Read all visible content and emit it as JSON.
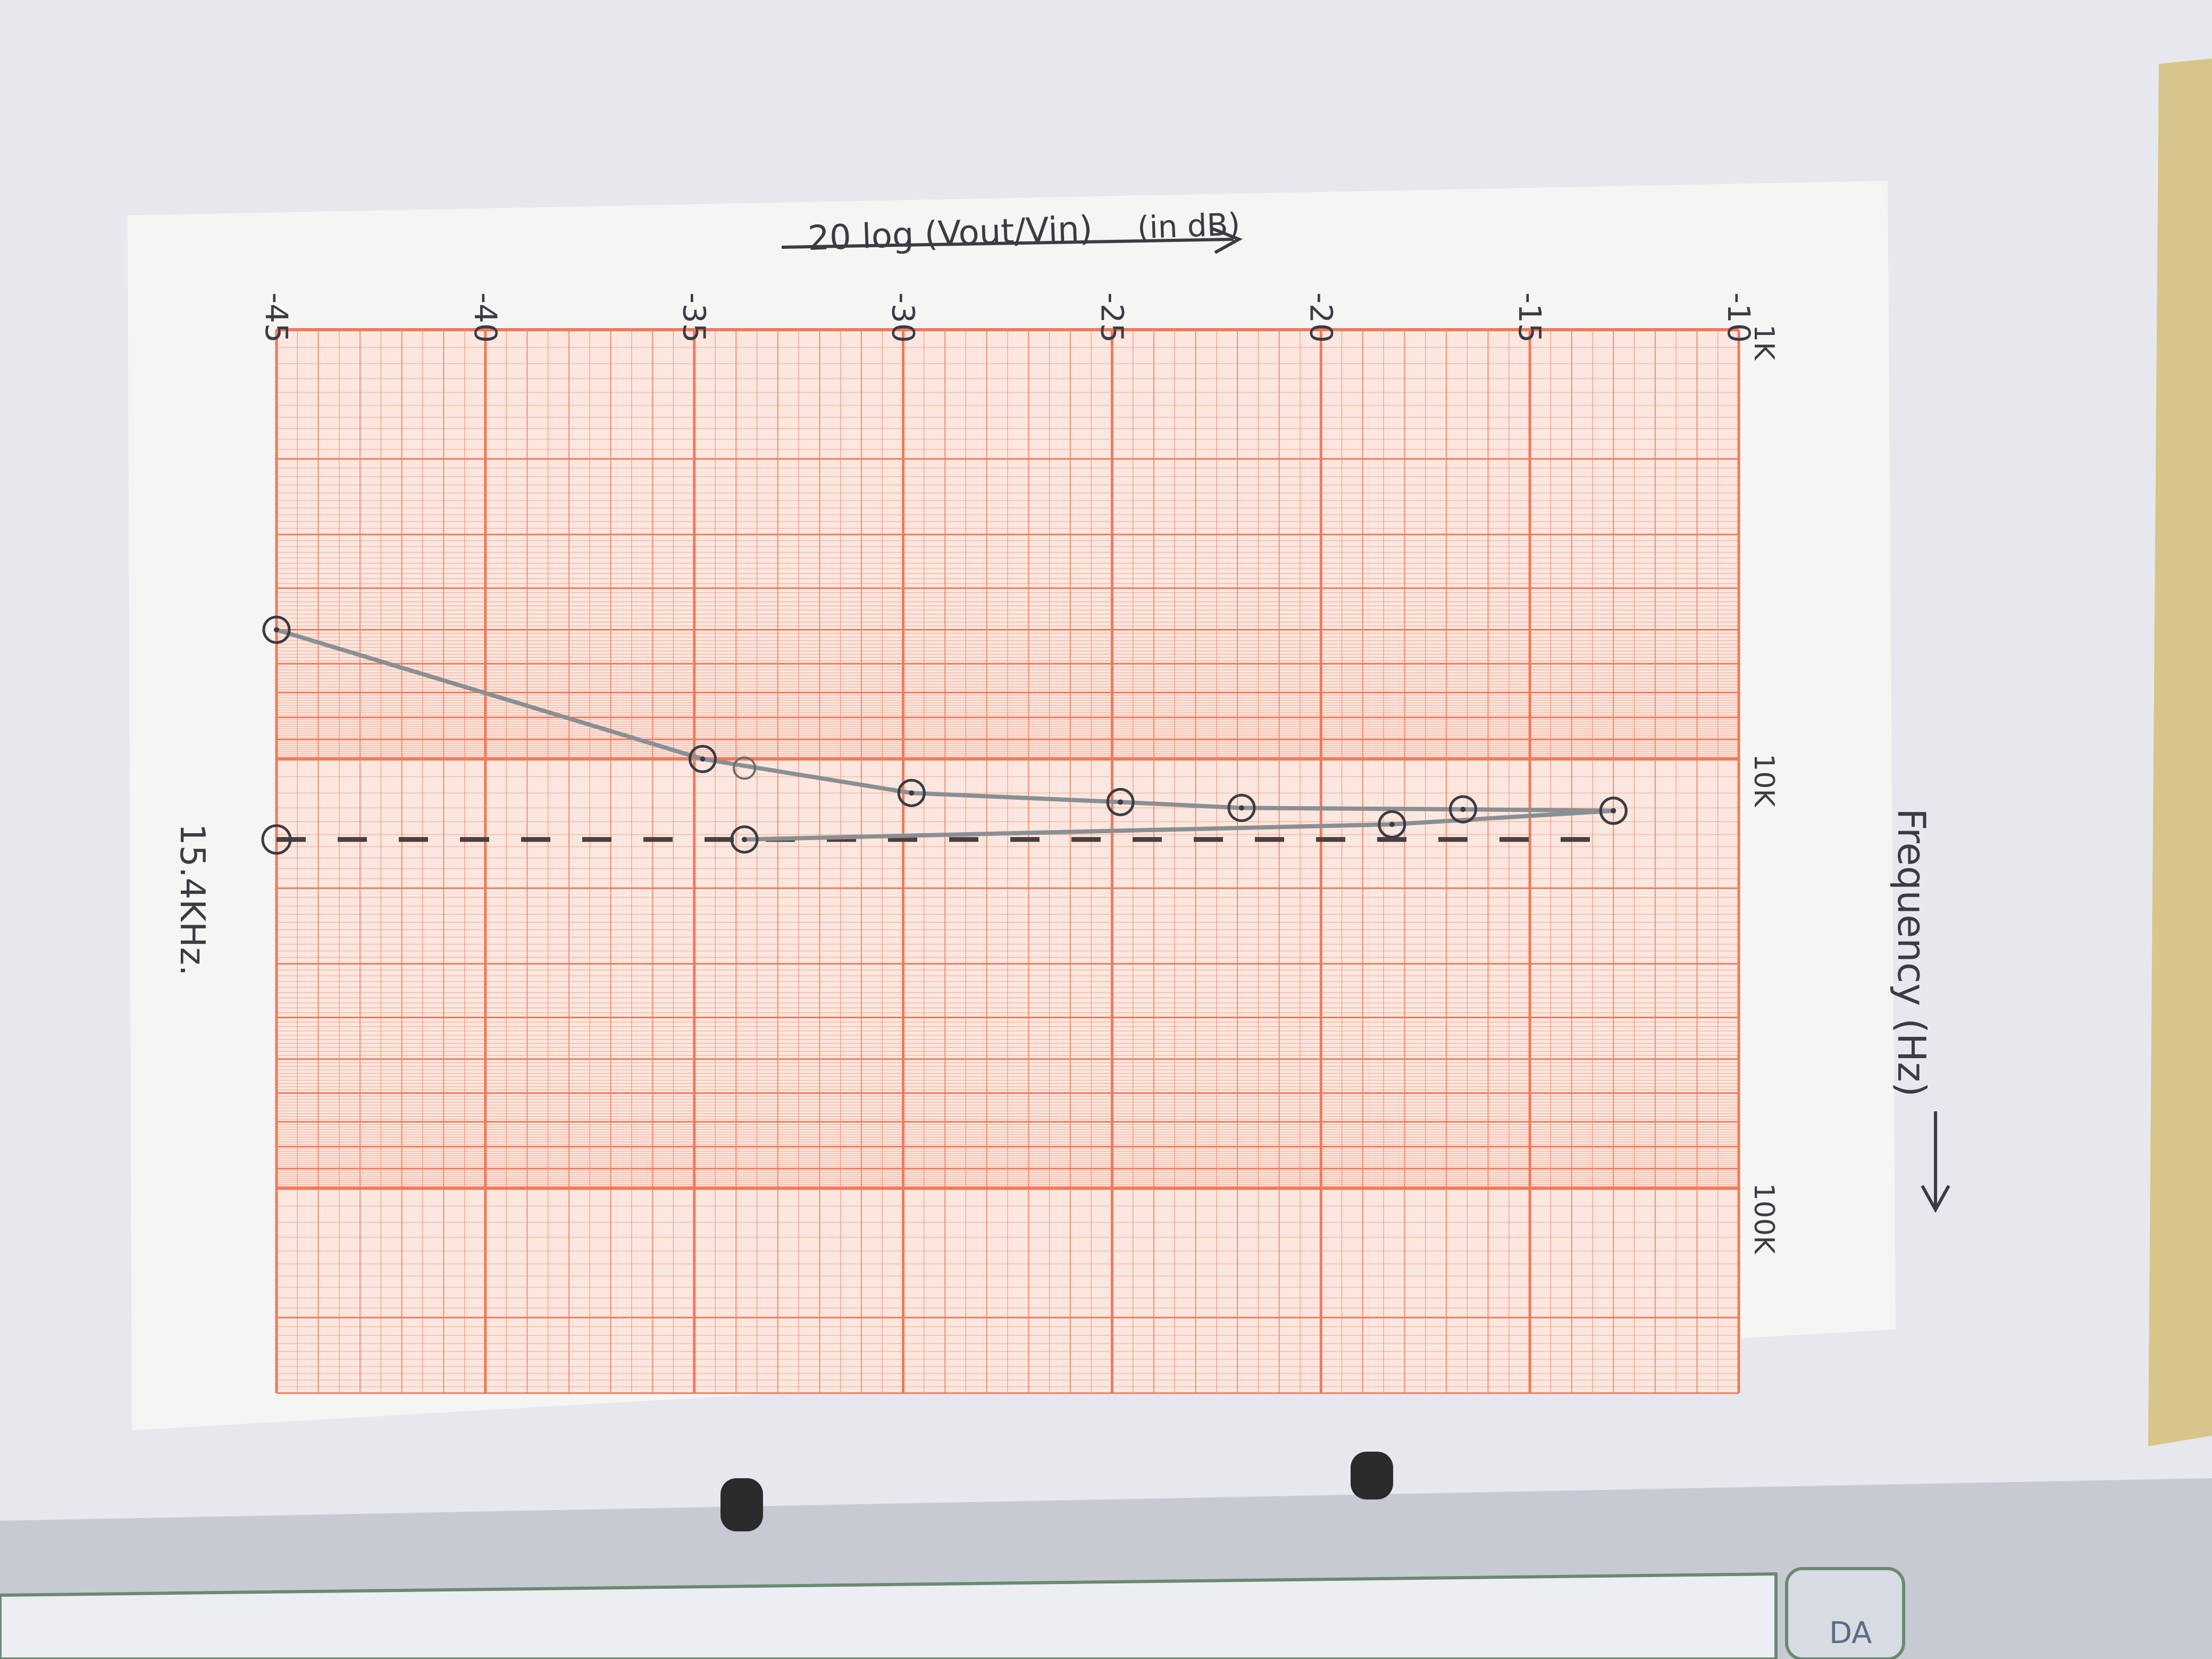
{
  "chart_data": {
    "type": "line",
    "x_scale": "log",
    "xlim": [
      1000,
      300000
    ],
    "ylim": [
      -45,
      -10
    ],
    "xlabel": "Frequency (Hz)",
    "ylabel": "20 log (Vout/Vin) (in dB)",
    "y_ticks": [
      {
        "value": -45,
        "label": "-45"
      },
      {
        "value": -40,
        "label": "-40"
      },
      {
        "value": -35,
        "label": "-35"
      },
      {
        "value": -30,
        "label": "-30"
      },
      {
        "value": -25,
        "label": "-25"
      },
      {
        "value": -20,
        "label": "-20"
      },
      {
        "value": -15,
        "label": "-15"
      },
      {
        "value": -10,
        "label": "-10"
      }
    ],
    "x_ticks": [
      {
        "value": 1000,
        "label": "1K"
      },
      {
        "value": 10000,
        "label": "10K"
      },
      {
        "value": 100000,
        "label": "100K"
      }
    ],
    "series": [
      {
        "points": [
          {
            "x": 5000,
            "y": -45.0
          },
          {
            "x": 10000,
            "y": -34.8
          },
          {
            "x": 12000,
            "y": -29.8
          },
          {
            "x": 12600,
            "y": -24.8
          },
          {
            "x": 13000,
            "y": -21.9
          },
          {
            "x": 13100,
            "y": -16.6
          },
          {
            "x": 13200,
            "y": -13.0
          }
        ]
      },
      {
        "points": [
          {
            "x": 15400,
            "y": -33.8
          },
          {
            "x": 14200,
            "y": -18.3
          },
          {
            "x": 13200,
            "y": -13.0
          }
        ]
      }
    ],
    "markers": [
      {
        "x": 10500,
        "y": -33.8
      }
    ],
    "vline": {
      "x": 15400,
      "y_from": -45,
      "y_to": -13,
      "style": "dashed"
    },
    "annotation": {
      "x": 15400,
      "y": -45,
      "text": "15.4KHz."
    }
  },
  "page": {
    "ylabel_text": "20 log (Vout/Vin)",
    "ylabel_unit": "(in dB)",
    "xlabel_text": "Frequency (Hz)",
    "corner_text": "DA"
  }
}
